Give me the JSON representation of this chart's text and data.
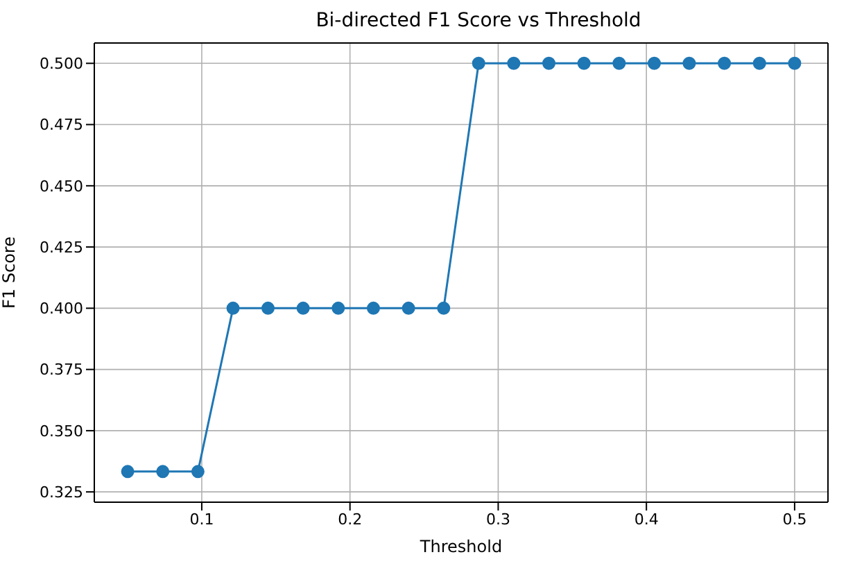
{
  "chart_data": {
    "type": "line",
    "title": "Bi-directed F1 Score vs Threshold",
    "xlabel": "Threshold",
    "ylabel": "F1 Score",
    "x": [
      0.05,
      0.0737,
      0.0974,
      0.1211,
      0.1447,
      0.1684,
      0.1921,
      0.2158,
      0.2395,
      0.2632,
      0.2868,
      0.3105,
      0.3342,
      0.3579,
      0.3816,
      0.4053,
      0.4289,
      0.4526,
      0.4763,
      0.5
    ],
    "series": [
      {
        "color": "#1f77b4",
        "values": [
          0.3333,
          0.3333,
          0.3333,
          0.4,
          0.4,
          0.4,
          0.4,
          0.4,
          0.4,
          0.4,
          0.5,
          0.5,
          0.5,
          0.5,
          0.5,
          0.5,
          0.5,
          0.5,
          0.5,
          0.5
        ]
      }
    ],
    "xlim": [
      0.0275,
      0.5225
    ],
    "xticks": [
      0.1,
      0.2,
      0.3,
      0.4,
      0.5
    ],
    "ylim": [
      0.3208,
      0.5083
    ],
    "yticks": [
      0.325,
      {
        "value": 0.35,
        "label": "0.350"
      },
      0.375,
      {
        "value": 0.4,
        "label": "0.400"
      },
      0.425,
      {
        "value": 0.45,
        "label": "0.450"
      },
      0.475,
      {
        "value": 0.5,
        "label": "0.500"
      }
    ],
    "grid": true,
    "marker": "circle",
    "line_style": "solid"
  }
}
